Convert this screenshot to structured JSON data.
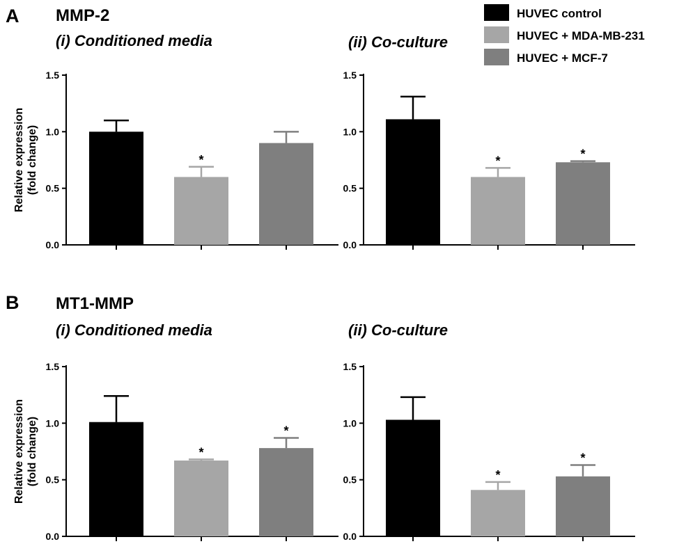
{
  "panels": [
    {
      "letter": "A",
      "gene": "MMP-2"
    },
    {
      "letter": "B",
      "gene": "MT1-MMP"
    }
  ],
  "legend": [
    {
      "label": "HUVEC control",
      "color": "#000000"
    },
    {
      "label": "HUVEC + MDA-MB-231",
      "color": "#a6a6a6"
    },
    {
      "label": "HUVEC + MCF-7",
      "color": "#7f7f7f"
    }
  ],
  "chart_data": [
    {
      "type": "bar",
      "panel": "A",
      "title": "(i) Conditioned media",
      "ylabel": "Relative expression\n(fold change)",
      "ylim": [
        0,
        1.5
      ],
      "yticks": [
        "0.0",
        "0.5",
        "1.0",
        "1.5"
      ],
      "series": [
        {
          "name": "HUVEC control",
          "value": 1.0,
          "error": 0.1,
          "significant": false
        },
        {
          "name": "HUVEC + MDA-MB-231",
          "value": 0.6,
          "error": 0.09,
          "significant": true
        },
        {
          "name": "HUVEC + MCF-7",
          "value": 0.9,
          "error": 0.1,
          "significant": false
        }
      ]
    },
    {
      "type": "bar",
      "panel": "A",
      "title": "(ii) Co-culture",
      "ylabel": "",
      "ylim": [
        0,
        1.5
      ],
      "yticks": [
        "0.0",
        "0.5",
        "1.0",
        "1.5"
      ],
      "series": [
        {
          "name": "HUVEC control",
          "value": 1.11,
          "error": 0.2,
          "significant": false
        },
        {
          "name": "HUVEC + MDA-MB-231",
          "value": 0.6,
          "error": 0.08,
          "significant": true
        },
        {
          "name": "HUVEC + MCF-7",
          "value": 0.73,
          "error": 0.01,
          "significant": true
        }
      ]
    },
    {
      "type": "bar",
      "panel": "B",
      "title": "(i) Conditioned media",
      "ylabel": "Relative expression\n(fold change)",
      "ylim": [
        0,
        1.5
      ],
      "yticks": [
        "0.0",
        "0.5",
        "1.0",
        "1.5"
      ],
      "series": [
        {
          "name": "HUVEC control",
          "value": 1.01,
          "error": 0.23,
          "significant": false
        },
        {
          "name": "HUVEC + MDA-MB-231",
          "value": 0.67,
          "error": 0.01,
          "significant": true
        },
        {
          "name": "HUVEC + MCF-7",
          "value": 0.78,
          "error": 0.09,
          "significant": true
        }
      ]
    },
    {
      "type": "bar",
      "panel": "B",
      "title": "(ii) Co-culture",
      "ylabel": "",
      "ylim": [
        0,
        1.5
      ],
      "yticks": [
        "0.0",
        "0.5",
        "1.0",
        "1.5"
      ],
      "series": [
        {
          "name": "HUVEC control",
          "value": 1.03,
          "error": 0.2,
          "significant": false
        },
        {
          "name": "HUVEC + MDA-MB-231",
          "value": 0.41,
          "error": 0.07,
          "significant": true
        },
        {
          "name": "HUVEC + MCF-7",
          "value": 0.53,
          "error": 0.1,
          "significant": true
        }
      ]
    }
  ]
}
